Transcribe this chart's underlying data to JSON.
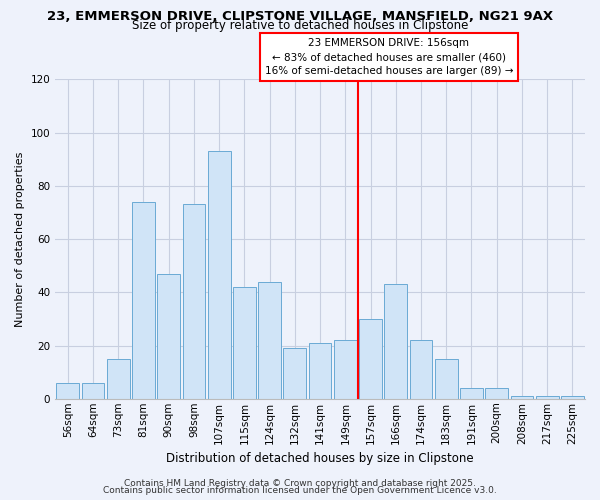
{
  "title1": "23, EMMERSON DRIVE, CLIPSTONE VILLAGE, MANSFIELD, NG21 9AX",
  "title2": "Size of property relative to detached houses in Clipstone",
  "xlabel": "Distribution of detached houses by size in Clipstone",
  "ylabel": "Number of detached properties",
  "bar_labels": [
    "56sqm",
    "64sqm",
    "73sqm",
    "81sqm",
    "90sqm",
    "98sqm",
    "107sqm",
    "115sqm",
    "124sqm",
    "132sqm",
    "141sqm",
    "149sqm",
    "157sqm",
    "166sqm",
    "174sqm",
    "183sqm",
    "191sqm",
    "200sqm",
    "208sqm",
    "217sqm",
    "225sqm"
  ],
  "bar_values": [
    6,
    6,
    15,
    74,
    47,
    73,
    93,
    42,
    44,
    19,
    21,
    22,
    30,
    43,
    22,
    15,
    4,
    4,
    1,
    1,
    1
  ],
  "bar_color": "#d0e4f7",
  "bar_edge_color": "#6aaad4",
  "vertical_line_color": "red",
  "annotation_title": "23 EMMERSON DRIVE: 156sqm",
  "annotation_line1": "← 83% of detached houses are smaller (460)",
  "annotation_line2": "16% of semi-detached houses are larger (89) →",
  "ylim": [
    0,
    120
  ],
  "yticks": [
    0,
    20,
    40,
    60,
    80,
    100,
    120
  ],
  "footer1": "Contains HM Land Registry data © Crown copyright and database right 2025.",
  "footer2": "Contains public sector information licensed under the Open Government Licence v3.0.",
  "bg_color": "#eef2fb",
  "grid_color": "#c8cfe0",
  "title1_fontsize": 9.5,
  "title2_fontsize": 8.5,
  "xlabel_fontsize": 8.5,
  "ylabel_fontsize": 8,
  "tick_fontsize": 7.5,
  "annot_fontsize": 7.5,
  "footer_fontsize": 6.5
}
